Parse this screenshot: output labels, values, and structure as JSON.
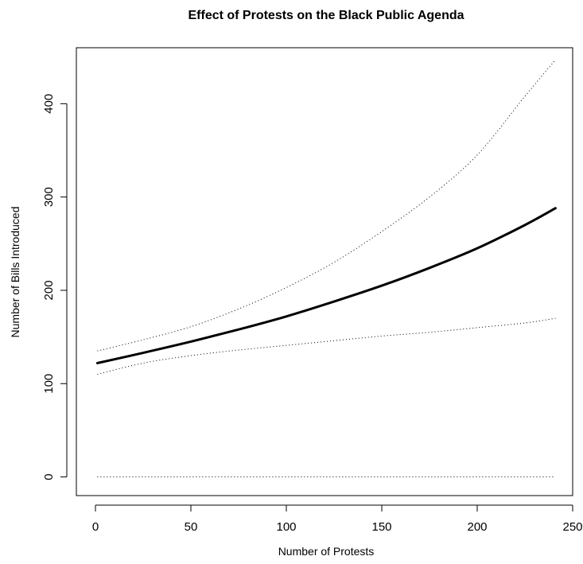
{
  "chart_data": {
    "type": "line",
    "title": "Effect of Protests on the Black Public Agenda",
    "xlabel": "Number of Protests",
    "ylabel": "Number of Bills Introduced",
    "xlim": [
      -10,
      250
    ],
    "ylim": [
      -20,
      460
    ],
    "xticks": [
      0,
      50,
      100,
      150,
      200,
      250
    ],
    "yticks": [
      0,
      100,
      200,
      300,
      400
    ],
    "grid": false,
    "series": [
      {
        "style": "solid-thick",
        "x": [
          1,
          25,
          50,
          75,
          100,
          125,
          150,
          175,
          200,
          225,
          241
        ],
        "y": [
          122,
          133,
          145,
          158,
          172,
          188,
          205,
          224,
          245,
          270,
          288
        ]
      },
      {
        "style": "dotted",
        "x": [
          1,
          25,
          50,
          75,
          100,
          125,
          150,
          175,
          200,
          225,
          241
        ],
        "y": [
          135,
          147,
          161,
          180,
          203,
          230,
          263,
          300,
          345,
          408,
          447
        ]
      },
      {
        "style": "dotted",
        "x": [
          1,
          25,
          50,
          75,
          100,
          125,
          150,
          175,
          200,
          225,
          241
        ],
        "y": [
          110,
          122,
          130,
          136,
          141,
          146,
          151,
          155,
          160,
          165,
          170
        ]
      },
      {
        "style": "dotted",
        "x": [
          1,
          241
        ],
        "y": [
          0,
          0
        ]
      }
    ]
  }
}
